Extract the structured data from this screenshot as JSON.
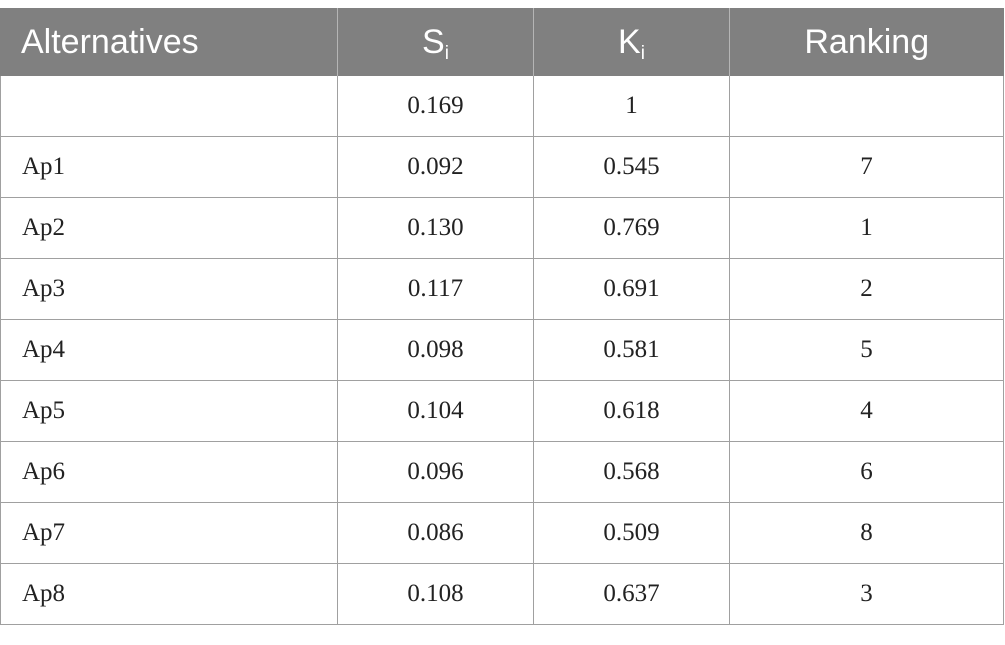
{
  "header": {
    "alternatives": "Alternatives",
    "s_main": "S",
    "s_sub": "i",
    "k_main": "K",
    "k_sub": "i",
    "ranking": "Ranking"
  },
  "rows": [
    {
      "alt": "",
      "s": "0.169",
      "k": "1",
      "rank": ""
    },
    {
      "alt": "Ap1",
      "s": "0.092",
      "k": "0.545",
      "rank": "7"
    },
    {
      "alt": "Ap2",
      "s": "0.130",
      "k": "0.769",
      "rank": "1"
    },
    {
      "alt": "Ap3",
      "s": "0.117",
      "k": "0.691",
      "rank": "2"
    },
    {
      "alt": "Ap4",
      "s": "0.098",
      "k": "0.581",
      "rank": "5"
    },
    {
      "alt": "Ap5",
      "s": "0.104",
      "k": "0.618",
      "rank": "4"
    },
    {
      "alt": "Ap6",
      "s": "0.096",
      "k": "0.568",
      "rank": "6"
    },
    {
      "alt": "Ap7",
      "s": "0.086",
      "k": "0.509",
      "rank": "8"
    },
    {
      "alt": "Ap8",
      "s": "0.108",
      "k": "0.637",
      "rank": "3"
    }
  ],
  "colors": {
    "header_bg": "#808080",
    "header_text": "#ffffff",
    "grid": "#a0a0a0",
    "body_text": "#222222"
  }
}
